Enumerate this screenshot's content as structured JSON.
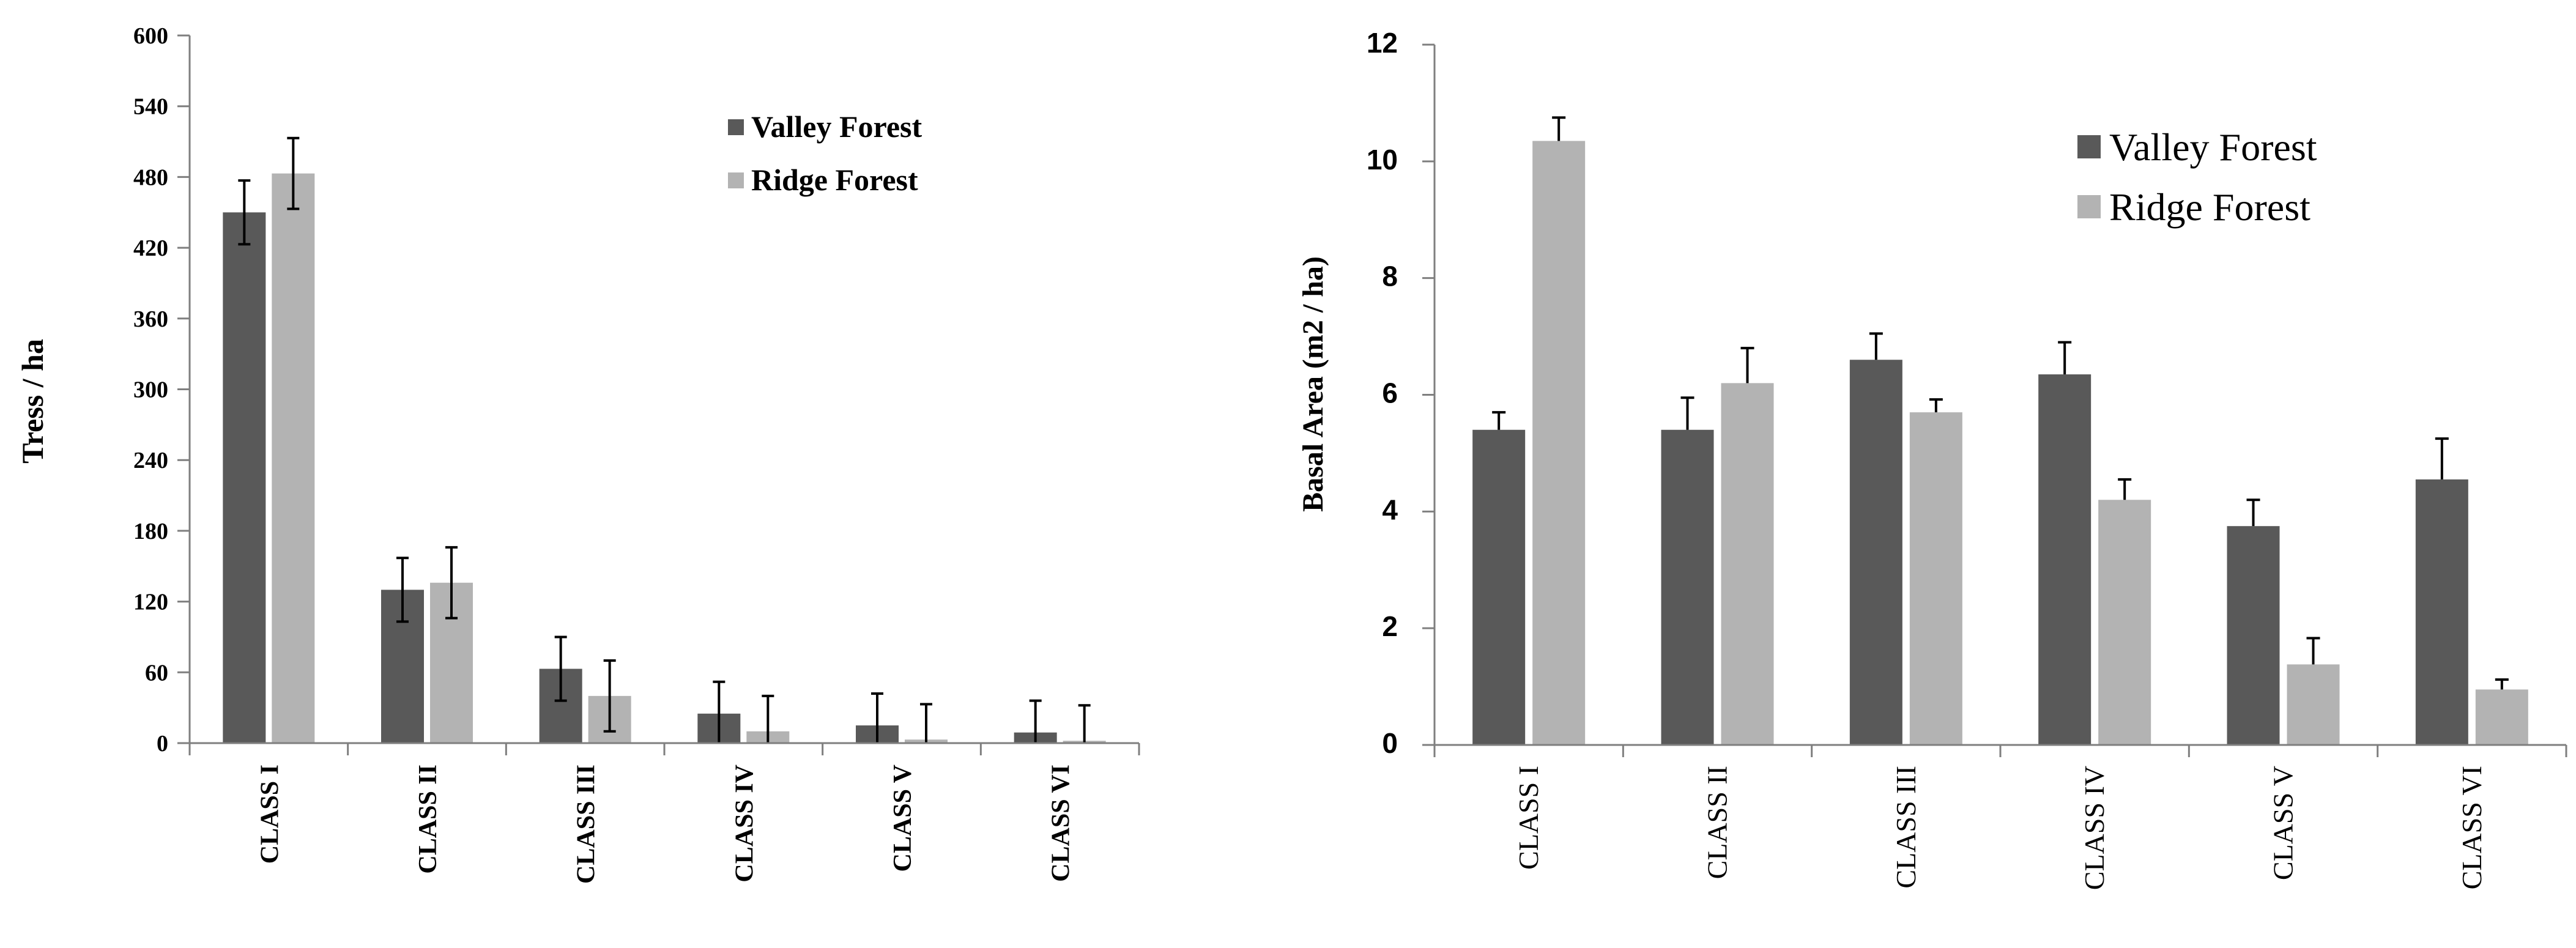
{
  "colors": {
    "valley": "#595959",
    "ridge": "#b3b3b3",
    "axis": "#7f7f7f",
    "error": "#000000"
  },
  "chart_data": [
    {
      "type": "bar",
      "title": "",
      "xlabel": "",
      "ylabel": "Tress  / ha",
      "ylim": [
        0,
        600
      ],
      "yticks": [
        "0",
        "60",
        "120",
        "180",
        "240",
        "300",
        "360",
        "420",
        "480",
        "540",
        "600"
      ],
      "categories": [
        "CLASS I",
        "CLASS II",
        "CLASS III",
        "CLASS IV",
        "CLASS V",
        "CLASS VI"
      ],
      "series": [
        {
          "name": "Valley Forest",
          "values": [
            450,
            130,
            63,
            25,
            15,
            9
          ],
          "errors": [
            27,
            27,
            27,
            27,
            27,
            27
          ]
        },
        {
          "name": "Ridge Forest",
          "values": [
            483,
            136,
            40,
            10,
            3,
            2
          ],
          "errors": [
            30,
            30,
            30,
            30,
            30,
            30
          ]
        }
      ],
      "legend": "top-right"
    },
    {
      "type": "bar",
      "title": "",
      "xlabel": "",
      "ylabel": "Basal Area (m2 / ha)",
      "ylim": [
        0,
        12
      ],
      "yticks": [
        "0",
        "2",
        "4",
        "6",
        "8",
        "10",
        "12"
      ],
      "categories": [
        "CLASS I",
        "CLASS II",
        "CLASS III",
        "CLASS IV",
        "CLASS V",
        "CLASS VI"
      ],
      "series": [
        {
          "name": "Valley Forest",
          "values": [
            5.4,
            5.4,
            6.6,
            6.35,
            3.75,
            4.55
          ],
          "errors": [
            0.3,
            0.55,
            0.45,
            0.55,
            0.45,
            0.7
          ]
        },
        {
          "name": "Ridge Forest",
          "values": [
            10.35,
            6.2,
            5.7,
            4.2,
            1.38,
            0.95
          ],
          "errors": [
            0.4,
            0.6,
            0.22,
            0.35,
            0.45,
            0.17
          ]
        }
      ],
      "legend": "top-right"
    }
  ]
}
